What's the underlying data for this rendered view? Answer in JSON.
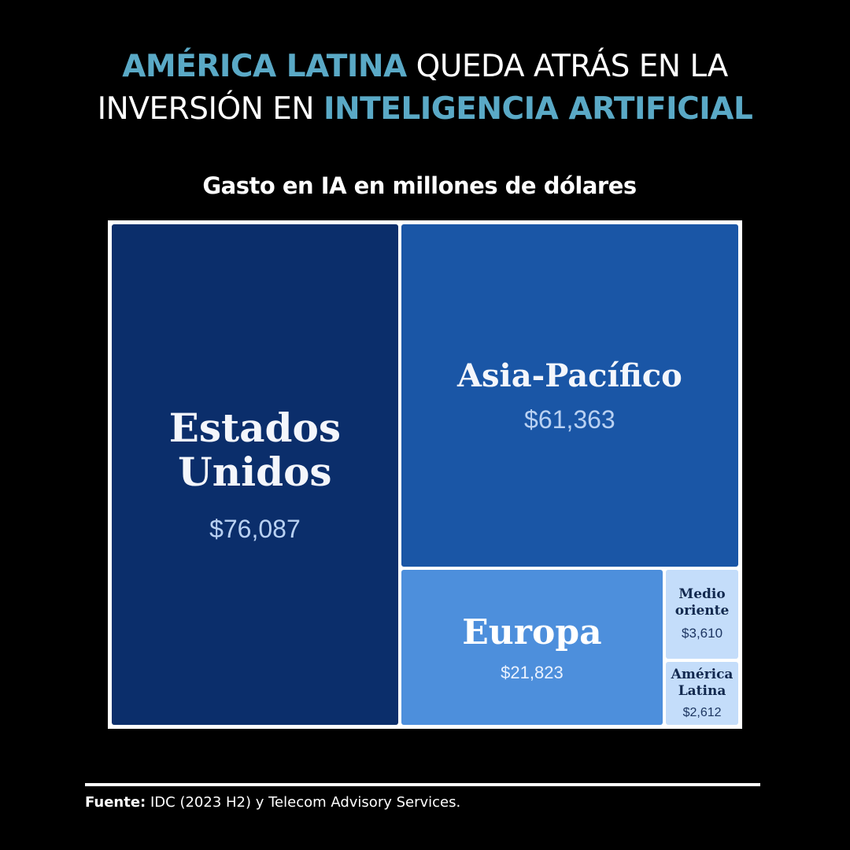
{
  "title": {
    "line1_highlight": "AMÉRICA LATINA",
    "line1_rest": "QUEDA ATRÁS EN LA",
    "line2_rest": "INVERSIÓN EN",
    "line2_highlight": "INTELIGENCIA ARTIFICIAL"
  },
  "colors": {
    "highlight": "#5aa9c6",
    "background": "#000000",
    "tile_usa": "#0b2e6b",
    "tile_asia": "#1a56a6",
    "tile_europe": "#4d8fdc",
    "tile_small": "#c4ddfa"
  },
  "chart_data": {
    "type": "treemap",
    "title": "Gasto en IA en millones de dólares",
    "unit": "millones de dólares",
    "items": [
      {
        "name": "Estados Unidos",
        "value": 76087,
        "label": "$76,087"
      },
      {
        "name": "Asia-Pacífico",
        "value": 61363,
        "label": "$61,363"
      },
      {
        "name": "Europa",
        "value": 21823,
        "label": "$21,823"
      },
      {
        "name": "Medio oriente",
        "value": 3610,
        "label": "$3,610"
      },
      {
        "name": "América Latina",
        "value": 2612,
        "label": "$2,612"
      }
    ]
  },
  "source": {
    "label": "Fuente:",
    "text": "IDC (2023 H2) y Telecom Advisory Services."
  }
}
